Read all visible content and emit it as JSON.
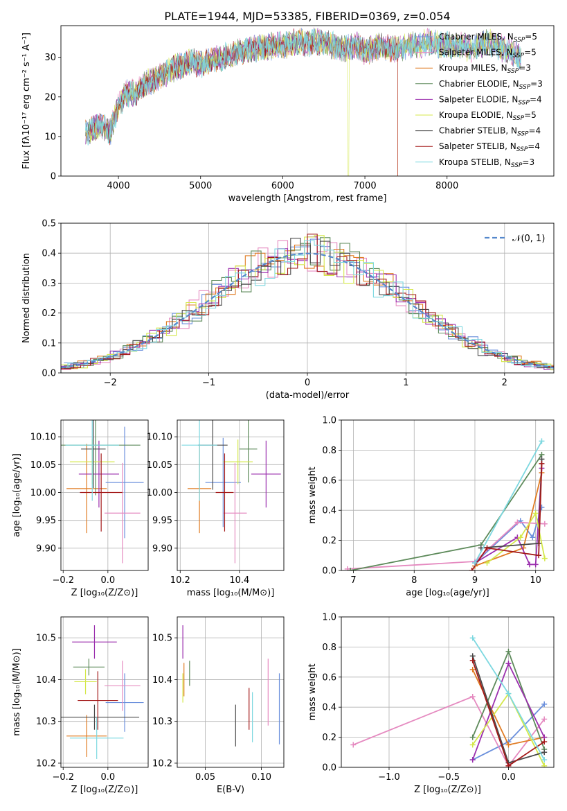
{
  "figure": {
    "title": "PLATE=1944, MJD=53385, FIBERID=0369, z=0.054"
  },
  "colors": {
    "Chabrier MILES": "#6a8fdc",
    "Salpeter MILES": "#e58ac0",
    "Kroupa MILES": "#e07b22",
    "Chabrier ELODIE": "#5d8a5a",
    "Salpeter ELODIE": "#9b2fae",
    "Kroupa ELODIE": "#d4e84a",
    "Chabrier STELIB": "#4a4a4a",
    "Salpeter STELIB": "#a31919",
    "Kroupa STELIB": "#7dd8e0",
    "normal_curve": "#5588cc"
  },
  "chart_data": [
    {
      "id": "spectrum",
      "type": "line",
      "xlabel": "wavelength [Angstrom, rest frame]",
      "ylabel": "Flux [fλ10⁻¹⁷ erg cm⁻² s⁻¹ A⁻¹]",
      "xlim": [
        3300,
        9300
      ],
      "ylim": [
        0,
        38
      ],
      "xticks": [
        4000,
        5000,
        6000,
        7000,
        8000
      ],
      "yticks": [
        0,
        10,
        20,
        30
      ],
      "grid": false,
      "legend_position": "right",
      "continuum": {
        "x": [
          3600,
          3700,
          3800,
          3900,
          4000,
          4100,
          4200,
          4300,
          4400,
          4500,
          4600,
          4700,
          4800,
          4900,
          5000,
          5100,
          5200,
          5300,
          5400,
          5500,
          5600,
          5700,
          5800,
          5900,
          6000,
          6100,
          6200,
          6300,
          6400,
          6500,
          6600,
          6700,
          6800,
          6900,
          7000,
          7100,
          7200,
          7300,
          7400,
          7500,
          7600,
          7700,
          7800,
          7900,
          8000,
          8100,
          8200,
          8300,
          8400,
          8500,
          8600,
          8700,
          8800,
          8900,
          9000,
          9100
        ],
        "y": [
          11,
          12,
          13,
          11,
          18,
          21,
          21,
          23,
          24,
          25,
          26.5,
          27.5,
          28,
          29,
          28,
          29,
          29.5,
          30,
          31,
          31.5,
          32,
          32.5,
          32.5,
          33,
          33,
          33.5,
          34,
          33.5,
          34,
          33.5,
          33,
          32,
          32.5,
          33,
          31.5,
          32,
          33,
          32,
          32,
          33,
          33,
          33.5,
          34,
          33,
          33,
          32.5,
          33,
          32,
          33,
          34,
          33,
          32,
          31,
          30,
          29,
          28
        ]
      },
      "series": [
        {
          "name": "Chabrier MILES, N_SSP=5",
          "nssp": "5"
        },
        {
          "name": "Salpeter MILES, N_SSP=5",
          "nssp": "5"
        },
        {
          "name": "Kroupa MILES, N_SSP=3",
          "nssp": "3"
        },
        {
          "name": "Chabrier ELODIE, N_SSP=3",
          "nssp": "3"
        },
        {
          "name": "Salpeter ELODIE, N_SSP=4",
          "nssp": "4"
        },
        {
          "name": "Kroupa ELODIE, N_SSP=5",
          "nssp": "5"
        },
        {
          "name": "Chabrier STELIB, N_SSP=4",
          "nssp": "4"
        },
        {
          "name": "Salpeter STELIB, N_SSP=4",
          "nssp": "4"
        },
        {
          "name": "Kroupa STELIB, N_SSP=3",
          "nssp": "3"
        }
      ]
    },
    {
      "id": "residuals",
      "type": "line",
      "xlabel": "(data-model)/error",
      "ylabel": "Normed distribution",
      "xlim": [
        -2.5,
        2.5
      ],
      "ylim": [
        0,
        0.5
      ],
      "xticks": [
        -2,
        -1,
        0,
        1,
        2
      ],
      "yticks": [
        0.0,
        0.1,
        0.2,
        0.3,
        0.4,
        0.5
      ],
      "grid": true,
      "legend_position": "top-right",
      "legend_label": "𝒩(0, 1)",
      "bin_width": 0.1
    },
    {
      "id": "age_vs_Z",
      "type": "scatter",
      "xlabel": "Z [log₁₀(Z/Z⊙)]",
      "ylabel": "age  [log₁₀(age/yr)]",
      "xlim": [
        -0.21,
        0.18
      ],
      "ylim": [
        9.86,
        10.13
      ],
      "xticks": [
        -0.2,
        0.0
      ],
      "yticks": [
        9.9,
        9.95,
        10.0,
        10.05,
        10.1
      ],
      "grid": true,
      "points": [
        {
          "x": 0.075,
          "y": 10.018,
          "xerr": 0.085,
          "yerr": 0.1
        },
        {
          "x": 0.065,
          "y": 9.963,
          "xerr": 0.08,
          "yerr": 0.09
        },
        {
          "x": -0.095,
          "y": 10.007,
          "xerr": 0.09,
          "yerr": 0.08
        },
        {
          "x": -0.055,
          "y": 10.085,
          "xerr": 0.2,
          "yerr": 0.09
        },
        {
          "x": -0.04,
          "y": 10.033,
          "xerr": 0.09,
          "yerr": 0.06
        },
        {
          "x": -0.07,
          "y": 10.055,
          "xerr": 0.1,
          "yerr": 0.04
        },
        {
          "x": -0.065,
          "y": 10.078,
          "xerr": 0.055,
          "yerr": 0.07
        },
        {
          "x": -0.03,
          "y": 10.0,
          "xerr": 0.095,
          "yerr": 0.07
        },
        {
          "x": -0.07,
          "y": 10.085,
          "xerr": 0.12,
          "yerr": 0.1
        }
      ]
    },
    {
      "id": "age_vs_mass",
      "type": "scatter",
      "xlabel": "mass [log₁₀(M/M⊙)]",
      "ylabel": "",
      "xlim": [
        10.19,
        10.55
      ],
      "ylim": [
        9.86,
        10.13
      ],
      "xticks": [
        10.2,
        10.4
      ],
      "yticks": [
        9.9,
        9.95,
        10.0,
        10.05,
        10.1
      ],
      "grid": true,
      "points": [
        {
          "x": 10.345,
          "y": 10.018,
          "xerr": 0.06,
          "yerr": 0.08
        },
        {
          "x": 10.385,
          "y": 9.963,
          "xerr": 0.04,
          "yerr": 0.09
        },
        {
          "x": 10.265,
          "y": 10.007,
          "xerr": 0.04,
          "yerr": 0.08
        },
        {
          "x": 10.43,
          "y": 10.078,
          "xerr": 0.03,
          "yerr": 0.06
        },
        {
          "x": 10.49,
          "y": 10.033,
          "xerr": 0.05,
          "yerr": 0.06
        },
        {
          "x": 10.395,
          "y": 10.055,
          "xerr": 0.05,
          "yerr": 0.04
        },
        {
          "x": 10.31,
          "y": 10.085,
          "xerr": 0.05,
          "yerr": 0.08
        },
        {
          "x": 10.35,
          "y": 10.0,
          "xerr": 0.03,
          "yerr": 0.07
        },
        {
          "x": 10.265,
          "y": 10.085,
          "xerr": 0.06,
          "yerr": 0.1
        }
      ]
    },
    {
      "id": "massweight_vs_age",
      "type": "line",
      "xlabel": "age  [log₁₀(age/yr)]",
      "ylabel": "mass weight",
      "xlim": [
        6.8,
        10.3
      ],
      "ylim": [
        0.0,
        1.0
      ],
      "xticks": [
        7,
        8,
        9,
        10
      ],
      "yticks": [
        0.0,
        0.2,
        0.4,
        0.6,
        0.8,
        1.0
      ],
      "grid": true,
      "series": [
        {
          "x": [
            9.0,
            9.75,
            9.95,
            10.1
          ],
          "y": [
            0.05,
            0.33,
            0.22,
            0.42
          ]
        },
        {
          "x": [
            6.9,
            9.0,
            9.7,
            10.15
          ],
          "y": [
            0.01,
            0.06,
            0.32,
            0.31
          ]
        },
        {
          "x": [
            9.0,
            9.8,
            10.1
          ],
          "y": [
            0.03,
            0.15,
            0.65
          ]
        },
        {
          "x": [
            6.95,
            9.1,
            10.1
          ],
          "y": [
            0.0,
            0.17,
            0.77
          ]
        },
        {
          "x": [
            9.0,
            9.7,
            9.9,
            10.0,
            10.1
          ],
          "y": [
            0.05,
            0.22,
            0.04,
            0.04,
            0.68
          ]
        },
        {
          "x": [
            9.2,
            9.75,
            10.0,
            10.15
          ],
          "y": [
            0.05,
            0.22,
            0.38,
            0.08
          ]
        },
        {
          "x": [
            9.1,
            10.05,
            10.1
          ],
          "y": [
            0.15,
            0.18,
            0.74
          ]
        },
        {
          "x": [
            8.95,
            9.2,
            10.05,
            10.1
          ],
          "y": [
            0.0,
            0.15,
            0.1,
            0.71
          ]
        },
        {
          "x": [
            9.0,
            10.1
          ],
          "y": [
            0.05,
            0.86
          ]
        }
      ]
    },
    {
      "id": "mass_vs_Z",
      "type": "scatter",
      "xlabel": "Z [log₁₀(Z/Z⊙)]",
      "ylabel": "mass [log₁₀(M/M⊙)]",
      "xlim": [
        -0.21,
        0.18
      ],
      "ylim": [
        10.19,
        10.55
      ],
      "xticks": [
        -0.2,
        0.0
      ],
      "yticks": [
        10.2,
        10.3,
        10.4,
        10.5
      ],
      "grid": true,
      "points": [
        {
          "x": 0.075,
          "y": 10.345,
          "xerr": 0.085,
          "yerr": 0.07
        },
        {
          "x": 0.065,
          "y": 10.385,
          "xerr": 0.08,
          "yerr": 0.06
        },
        {
          "x": -0.095,
          "y": 10.265,
          "xerr": 0.09,
          "yerr": 0.05
        },
        {
          "x": -0.085,
          "y": 10.43,
          "xerr": 0.07,
          "yerr": 0.02
        },
        {
          "x": -0.06,
          "y": 10.49,
          "xerr": 0.1,
          "yerr": 0.04
        },
        {
          "x": -0.1,
          "y": 10.395,
          "xerr": 0.05,
          "yerr": 0.03
        },
        {
          "x": -0.06,
          "y": 10.31,
          "xerr": 0.2,
          "yerr": 0.03
        },
        {
          "x": -0.045,
          "y": 10.35,
          "xerr": 0.09,
          "yerr": 0.07
        },
        {
          "x": -0.05,
          "y": 10.26,
          "xerr": 0.12,
          "yerr": 0.05
        }
      ]
    },
    {
      "id": "mass_vs_EBV",
      "type": "scatter",
      "xlabel": "E(B-V)",
      "ylabel": "",
      "xlim": [
        0.025,
        0.12
      ],
      "ylim": [
        10.19,
        10.55
      ],
      "xticks": [
        0.05,
        0.1
      ],
      "yticks": [
        10.2,
        10.3,
        10.4,
        10.5
      ],
      "grid": true,
      "points": [
        {
          "x": 0.116,
          "y": 10.33,
          "yerr": 0.085
        },
        {
          "x": 0.106,
          "y": 10.37,
          "yerr": 0.08
        },
        {
          "x": 0.031,
          "y": 10.4,
          "yerr": 0.04
        },
        {
          "x": 0.036,
          "y": 10.415,
          "yerr": 0.03
        },
        {
          "x": 0.03,
          "y": 10.49,
          "yerr": 0.04
        },
        {
          "x": 0.03,
          "y": 10.38,
          "yerr": 0.035
        },
        {
          "x": 0.077,
          "y": 10.29,
          "yerr": 0.05
        },
        {
          "x": 0.089,
          "y": 10.33,
          "yerr": 0.05
        },
        {
          "x": 0.092,
          "y": 10.31,
          "yerr": 0.06
        }
      ]
    },
    {
      "id": "massweight_vs_Z",
      "type": "line",
      "xlabel": "Z [log₁₀(Z/Z⊙)]",
      "ylabel": "mass weight",
      "xlim": [
        -1.4,
        0.38
      ],
      "ylim": [
        0.0,
        1.0
      ],
      "xticks": [
        -1.0,
        -0.5,
        0.0
      ],
      "yticks": [
        0.0,
        0.2,
        0.4,
        0.6,
        0.8,
        1.0
      ],
      "grid": true,
      "series": [
        {
          "x": [
            -0.3,
            0.0,
            0.3
          ],
          "y": [
            0.05,
            0.17,
            0.42
          ]
        },
        {
          "x": [
            -1.3,
            -0.3,
            0.0,
            0.3
          ],
          "y": [
            0.15,
            0.47,
            0.01,
            0.32
          ]
        },
        {
          "x": [
            -0.3,
            0.0,
            0.3
          ],
          "y": [
            0.65,
            0.15,
            0.2
          ]
        },
        {
          "x": [
            -0.3,
            0.0,
            0.3
          ],
          "y": [
            0.2,
            0.77,
            0.12
          ]
        },
        {
          "x": [
            -0.3,
            0.0,
            0.3
          ],
          "y": [
            0.05,
            0.69,
            0.2
          ]
        },
        {
          "x": [
            -0.3,
            0.0,
            0.3
          ],
          "y": [
            0.15,
            0.49,
            0.01
          ]
        },
        {
          "x": [
            -0.3,
            0.0,
            0.3
          ],
          "y": [
            0.74,
            0.03,
            0.1
          ]
        },
        {
          "x": [
            -0.3,
            0.0,
            0.3
          ],
          "y": [
            0.71,
            0.01,
            0.17
          ]
        },
        {
          "x": [
            -0.3,
            0.0,
            0.3
          ],
          "y": [
            0.86,
            0.49,
            0.05
          ]
        }
      ]
    }
  ]
}
